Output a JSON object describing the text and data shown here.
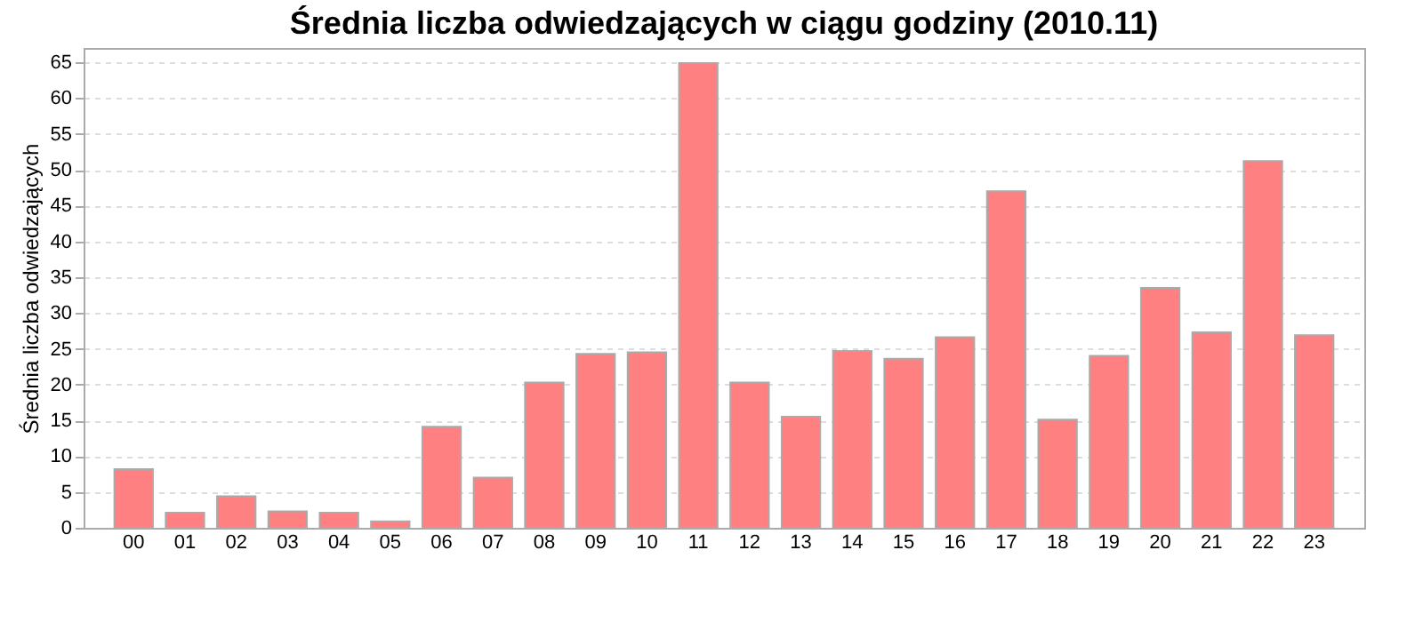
{
  "chart_data": {
    "type": "bar",
    "title": "Średnia liczba odwiedzających w ciągu godziny (2010.11)",
    "ylabel": "Średnia liczba odwiedzających",
    "categories": [
      "00",
      "01",
      "02",
      "03",
      "04",
      "05",
      "06",
      "07",
      "08",
      "09",
      "10",
      "11",
      "12",
      "13",
      "14",
      "15",
      "16",
      "17",
      "18",
      "19",
      "20",
      "21",
      "22",
      "23"
    ],
    "values": [
      8.2,
      2.1,
      4.4,
      2.3,
      2.1,
      0.9,
      14.1,
      7.0,
      20.3,
      24.3,
      24.5,
      64.9,
      20.3,
      15.5,
      24.7,
      23.6,
      26.6,
      47.0,
      15.1,
      24.0,
      33.5,
      27.3,
      51.2,
      26.9
    ],
    "color": "#ff8080",
    "ylim": [
      0,
      67
    ],
    "yticks": [
      0,
      5,
      10,
      15,
      20,
      25,
      30,
      35,
      40,
      45,
      50,
      55,
      60,
      65
    ],
    "grid": "y"
  }
}
